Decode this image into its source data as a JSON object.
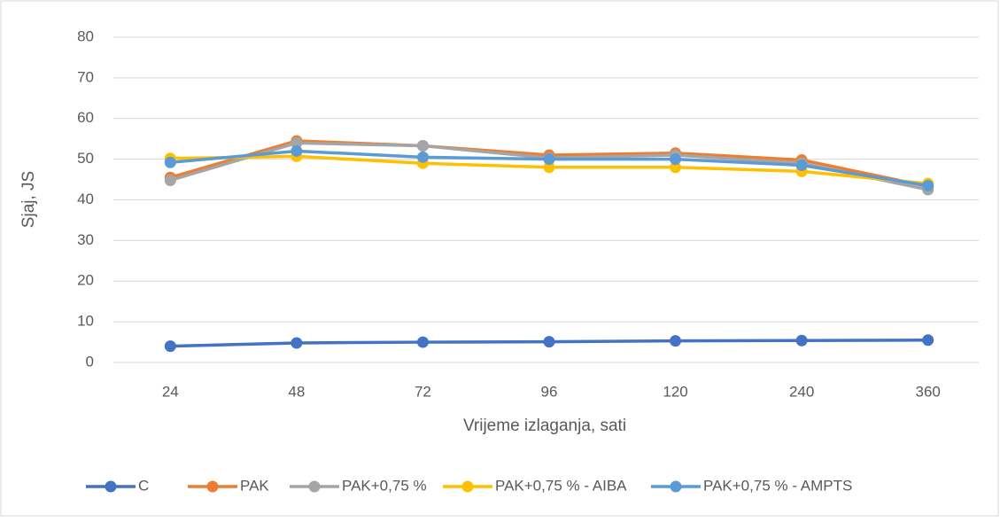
{
  "chart_data": {
    "type": "line",
    "xlabel": "Vrijeme izlaganja, sati",
    "ylabel": "Sjaj, JS",
    "categories": [
      "24",
      "48",
      "72",
      "96",
      "120",
      "240",
      "360"
    ],
    "series": [
      {
        "name": "C",
        "color": "#4472c4",
        "values": [
          4.0,
          4.8,
          5.0,
          5.1,
          5.3,
          5.4,
          5.5
        ]
      },
      {
        "name": "PAK",
        "color": "#ed7d31",
        "values": [
          45.5,
          54.5,
          53.3,
          51.0,
          51.5,
          49.8,
          43.3
        ]
      },
      {
        "name": "PAK+0,75 %",
        "color": "#a5a5a5",
        "values": [
          44.8,
          54.0,
          53.3,
          50.3,
          51.0,
          49.0,
          42.5
        ]
      },
      {
        "name": "PAK+0,75 % - AIBA",
        "color": "#ffc000",
        "values": [
          50.2,
          50.7,
          49.0,
          48.0,
          48.0,
          47.0,
          44.0
        ]
      },
      {
        "name": "PAK+0,75 % - AMPTS",
        "color": "#5b9bd5",
        "values": [
          49.2,
          52.0,
          50.5,
          50.0,
          50.0,
          48.5,
          43.5
        ]
      }
    ],
    "ylim": [
      0,
      80
    ],
    "yticks": [
      0,
      10,
      20,
      30,
      40,
      50,
      60,
      70,
      80
    ],
    "grid": true,
    "legend": "bottom"
  }
}
